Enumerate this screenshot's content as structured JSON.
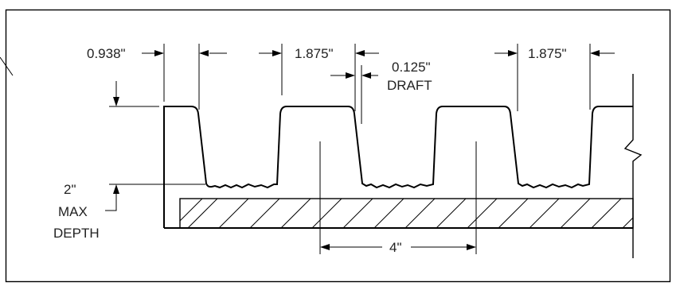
{
  "dimensions": {
    "top_lead_in": "0.938\"",
    "channel_width_left": "1.875\"",
    "draft_value": "0.125\"",
    "draft_label": "DRAFT",
    "channel_width_right": "1.875\"",
    "spacing": "4\"",
    "depth_value": "2\"",
    "depth_line2": "MAX",
    "depth_line3": "DEPTH"
  }
}
